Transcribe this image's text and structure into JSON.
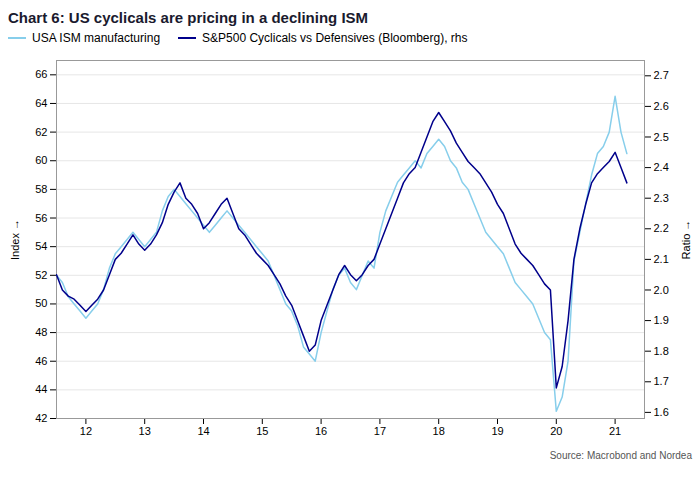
{
  "chart_data": {
    "type": "line",
    "title": "Chart 6: US cyclicals are pricing in a declining ISM",
    "annotations": [
      "Source: Macrobond and Nordea"
    ],
    "ylabel": "Index",
    "y2label": "Ratio",
    "legend": "upper left",
    "grid": "y",
    "xlim": [
      11.5,
      21.5
    ],
    "xticks": [
      12,
      13,
      14,
      15,
      16,
      17,
      18,
      19,
      20,
      21
    ],
    "ylim": [
      42,
      67
    ],
    "yticks": [
      42,
      44,
      46,
      48,
      50,
      52,
      54,
      56,
      58,
      60,
      62,
      64,
      66
    ],
    "y2lim": [
      1.58,
      2.75
    ],
    "y2ticks": [
      1.6,
      1.7,
      1.8,
      1.9,
      {
        "value": 2.0,
        "label": "2.0"
      },
      2.1,
      2.2,
      2.3,
      2.4,
      2.5,
      2.6,
      2.7
    ],
    "x": [
      11.5,
      11.6,
      11.7,
      11.8,
      11.9,
      12.0,
      12.1,
      12.2,
      12.3,
      12.4,
      12.5,
      12.6,
      12.7,
      12.8,
      12.9,
      13.0,
      13.1,
      13.2,
      13.3,
      13.4,
      13.5,
      13.6,
      13.7,
      13.8,
      13.9,
      14.0,
      14.1,
      14.2,
      14.3,
      14.4,
      14.5,
      14.6,
      14.7,
      14.8,
      14.9,
      15.0,
      15.1,
      15.2,
      15.3,
      15.4,
      15.5,
      15.6,
      15.7,
      15.8,
      15.9,
      16.0,
      16.1,
      16.2,
      16.3,
      16.4,
      16.5,
      16.6,
      16.7,
      16.8,
      16.9,
      17.0,
      17.1,
      17.2,
      17.3,
      17.4,
      17.5,
      17.6,
      17.7,
      17.8,
      17.9,
      18.0,
      18.1,
      18.2,
      18.3,
      18.4,
      18.5,
      18.6,
      18.7,
      18.8,
      18.9,
      19.0,
      19.1,
      19.2,
      19.3,
      19.4,
      19.5,
      19.6,
      19.7,
      19.8,
      19.9,
      20.0,
      20.1,
      20.2,
      20.3,
      20.4,
      20.5,
      20.6,
      20.7,
      20.8,
      20.9,
      21.0,
      21.1,
      21.2
    ],
    "series": [
      {
        "name": "USA ISM manufacturing",
        "color": "#87CEEB",
        "axis": "y",
        "values": [
          52.0,
          51.5,
          50.5,
          50.0,
          49.5,
          49.0,
          49.5,
          50.0,
          51.0,
          52.5,
          53.5,
          54.0,
          54.5,
          55.0,
          54.5,
          54.0,
          54.5,
          55.0,
          56.5,
          57.5,
          58.0,
          57.5,
          57.0,
          56.5,
          56.0,
          55.5,
          55.0,
          55.5,
          56.0,
          56.5,
          56.0,
          55.5,
          55.0,
          54.5,
          54.0,
          53.5,
          53.0,
          52.0,
          51.0,
          50.0,
          49.5,
          48.5,
          47.0,
          46.5,
          46.0,
          48.0,
          49.5,
          51.0,
          52.0,
          52.5,
          51.5,
          51.0,
          52.0,
          53.0,
          52.5,
          55.0,
          56.5,
          57.5,
          58.5,
          59.0,
          59.5,
          60.0,
          59.5,
          60.5,
          61.0,
          61.5,
          61.0,
          60.0,
          59.5,
          58.5,
          58.0,
          57.0,
          56.0,
          55.0,
          54.5,
          54.0,
          53.5,
          52.5,
          51.5,
          51.0,
          50.5,
          50.0,
          49.0,
          48.0,
          47.5,
          42.5,
          43.5,
          46.0,
          53.0,
          55.0,
          57.0,
          59.0,
          60.5,
          61.0,
          62.0,
          64.5,
          62.0,
          60.5
        ]
      },
      {
        "name": "S&P500 Cyclicals vs Defensives (Bloomberg), rhs",
        "color": "#00008B",
        "axis": "y2",
        "values": [
          2.05,
          2.0,
          1.98,
          1.97,
          1.95,
          1.93,
          1.95,
          1.97,
          2.0,
          2.05,
          2.1,
          2.12,
          2.15,
          2.18,
          2.15,
          2.13,
          2.15,
          2.18,
          2.22,
          2.28,
          2.32,
          2.35,
          2.3,
          2.28,
          2.25,
          2.2,
          2.22,
          2.25,
          2.28,
          2.3,
          2.25,
          2.2,
          2.18,
          2.15,
          2.12,
          2.1,
          2.08,
          2.05,
          2.02,
          1.98,
          1.95,
          1.9,
          1.85,
          1.8,
          1.82,
          1.9,
          1.95,
          2.0,
          2.05,
          2.08,
          2.05,
          2.03,
          2.05,
          2.08,
          2.1,
          2.15,
          2.2,
          2.25,
          2.3,
          2.35,
          2.38,
          2.4,
          2.45,
          2.5,
          2.55,
          2.58,
          2.55,
          2.52,
          2.48,
          2.45,
          2.42,
          2.4,
          2.38,
          2.35,
          2.32,
          2.28,
          2.25,
          2.2,
          2.15,
          2.12,
          2.1,
          2.08,
          2.05,
          2.02,
          2.0,
          1.68,
          1.75,
          1.9,
          2.1,
          2.2,
          2.28,
          2.35,
          2.38,
          2.4,
          2.42,
          2.45,
          2.4,
          2.35
        ]
      }
    ]
  }
}
